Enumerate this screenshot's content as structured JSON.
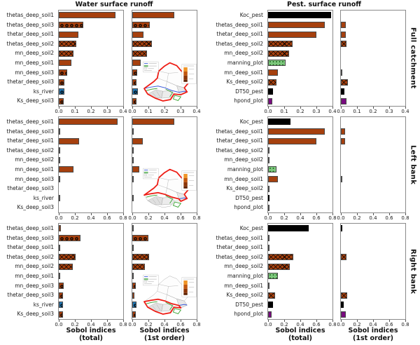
{
  "figure": {
    "col_titles": [
      "Water surface runoff",
      "Pest. surface runoff"
    ],
    "row_labels": [
      "Full catchment",
      "Left bank",
      "Right bank"
    ],
    "xlabels": {
      "total": [
        "Sobol indices",
        "(total)"
      ],
      "first": [
        "Sobol indices",
        "(1st order)"
      ]
    }
  },
  "colors": {
    "bar_brown": "#a6400e",
    "bar_black": "#000000",
    "bar_green": "#7dc87d",
    "bar_purple": "#7a0b80",
    "bar_blue": "#2077b4",
    "axis_spine": "#8a8a8a",
    "map_red": "#ee1c14",
    "map_river": "#3b5bdb",
    "map_green": "#33a02c"
  },
  "chart_data": {
    "type": "bar",
    "orientation": "horizontal",
    "water": {
      "title": "Water surface runoff",
      "categories": [
        "thetas_deep_soil1",
        "thetas_deep_soil3",
        "thetar_deep_soil1",
        "thetas_deep_soil2",
        "mn_deep_soil2",
        "mn_deep_soil1",
        "mn_deep_soil3",
        "thetar_deep_soil3",
        "ks_river",
        "Ks_deep_soil3"
      ],
      "bar_colors": [
        "#a6400e",
        "#a6400e",
        "#a6400e",
        "#a6400e",
        "#a6400e",
        "#a6400e",
        "#a6400e",
        "#a6400e",
        "#2077b4",
        "#a6400e"
      ],
      "hatches": [
        null,
        "o",
        null,
        "x",
        "x",
        null,
        "o",
        "o",
        "o",
        "o"
      ],
      "rows": [
        {
          "region": "Full catchment",
          "xlim": [
            0,
            0.4
          ],
          "xticks": [
            "0.0",
            "0.1",
            "0.2",
            "0.3",
            "0.4"
          ],
          "total": [
            0.35,
            0.15,
            0.12,
            0.11,
            0.09,
            0.08,
            0.05,
            0.035,
            0.035,
            0.03
          ],
          "first_order": [
            0.26,
            0.11,
            0.07,
            0.12,
            0.09,
            0.05,
            0.03,
            0.025,
            0.035,
            0.025
          ],
          "inset": "full-catchment"
        },
        {
          "region": "Left bank",
          "xlim": [
            0,
            0.8
          ],
          "xticks": [
            "0.0",
            "0.2",
            "0.4",
            "0.6",
            "0.8"
          ],
          "total": [
            0.73,
            0.01,
            0.25,
            0.01,
            0.015,
            0.18,
            0.01,
            0,
            0.01,
            0
          ],
          "first_order": [
            0.52,
            0.005,
            0.13,
            0.005,
            0.005,
            0.09,
            0.005,
            0,
            0.005,
            0
          ],
          "inset": "left-bank"
        },
        {
          "region": "Right bank",
          "xlim": [
            0,
            0.8
          ],
          "xticks": [
            "0.0",
            "0.2",
            "0.4",
            "0.6",
            "0.8"
          ],
          "total": [
            0.025,
            0.27,
            0.01,
            0.21,
            0.17,
            0.01,
            0.06,
            0.05,
            0.055,
            0.05
          ],
          "first_order": [
            0.02,
            0.2,
            0.01,
            0.21,
            0.16,
            0.01,
            0.045,
            0.03,
            0.05,
            0.045
          ],
          "inset": "right-bank"
        }
      ]
    },
    "pest": {
      "title": "Pest. surface runoff",
      "categories": [
        "Koc_pest",
        "thetas_deep_soil1",
        "thetar_deep_soil1",
        "thetas_deep_soil2",
        "mn_deep_soil2",
        "manning_plot",
        "mn_deep_soil1",
        "Ks_deep_soil2",
        "DT50_pest",
        "hpond_plot"
      ],
      "bar_colors": [
        "#000000",
        "#a6400e",
        "#a6400e",
        "#a6400e",
        "#a6400e",
        "#7dc87d",
        "#a6400e",
        "#a6400e",
        "#000000",
        "#7a0b80"
      ],
      "hatches": [
        null,
        null,
        null,
        "x",
        "x",
        "dots",
        null,
        "x",
        null,
        null
      ],
      "rows": [
        {
          "region": "Full catchment",
          "xlim": [
            0,
            0.4
          ],
          "xticks": [
            "0.0",
            "0.1",
            "0.2",
            "0.3",
            "0.4"
          ],
          "total": [
            0.39,
            0.35,
            0.3,
            0.15,
            0.13,
            0.11,
            0.06,
            0.05,
            0.03,
            0.025
          ],
          "first_order": [
            0,
            0.03,
            0.03,
            0.035,
            0,
            0,
            0.005,
            0.045,
            0.02,
            0.035
          ]
        },
        {
          "region": "Left bank",
          "xlim": [
            0,
            0.8
          ],
          "xticks": [
            "0.0",
            "0.2",
            "0.4",
            "0.6",
            "0.8"
          ],
          "total": [
            0.28,
            0.7,
            0.6,
            0.01,
            0.005,
            0.1,
            0.12,
            0.01,
            0.01,
            0.01
          ],
          "first_order": [
            0,
            0.05,
            0.05,
            0,
            0,
            0,
            0.01,
            0,
            0,
            0
          ]
        },
        {
          "region": "Right bank",
          "xlim": [
            0,
            0.8
          ],
          "xticks": [
            "0.0",
            "0.2",
            "0.4",
            "0.6",
            "0.8"
          ],
          "total": [
            0.5,
            0.015,
            0.005,
            0.31,
            0.27,
            0.12,
            0.01,
            0.09,
            0.06,
            0.045
          ],
          "first_order": [
            0.005,
            0,
            0,
            0.07,
            0,
            0,
            0,
            0.08,
            0.035,
            0.06
          ]
        }
      ]
    }
  }
}
